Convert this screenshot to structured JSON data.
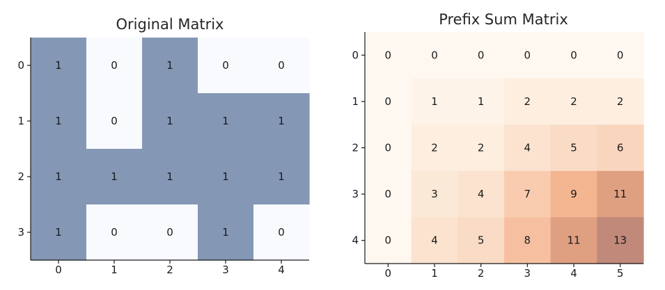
{
  "chart_data": [
    {
      "type": "heatmap",
      "title": "Original Matrix",
      "x_ticks": [
        "0",
        "1",
        "2",
        "3",
        "4"
      ],
      "y_ticks": [
        "0",
        "1",
        "2",
        "3"
      ],
      "values": [
        [
          1,
          0,
          1,
          0,
          0
        ],
        [
          1,
          0,
          1,
          1,
          1
        ],
        [
          1,
          1,
          1,
          1,
          1
        ],
        [
          1,
          0,
          0,
          1,
          0
        ]
      ],
      "colors": {
        "zero": "#f8fafd",
        "one": "#8497b5"
      },
      "grid": false
    },
    {
      "type": "heatmap",
      "title": "Prefix Sum Matrix",
      "x_ticks": [
        "0",
        "1",
        "2",
        "3",
        "4",
        "5"
      ],
      "y_ticks": [
        "0",
        "1",
        "2",
        "3",
        "4"
      ],
      "values": [
        [
          0,
          0,
          0,
          0,
          0,
          0
        ],
        [
          0,
          1,
          1,
          2,
          2,
          2
        ],
        [
          0,
          2,
          2,
          4,
          5,
          6
        ],
        [
          0,
          3,
          4,
          7,
          9,
          11
        ],
        [
          0,
          4,
          5,
          8,
          11,
          13
        ]
      ],
      "colormap": [
        "#fff8f1",
        "#fbe8d6",
        "#fad2b8",
        "#f2ac85",
        "#c0897a"
      ],
      "grid": false
    }
  ]
}
